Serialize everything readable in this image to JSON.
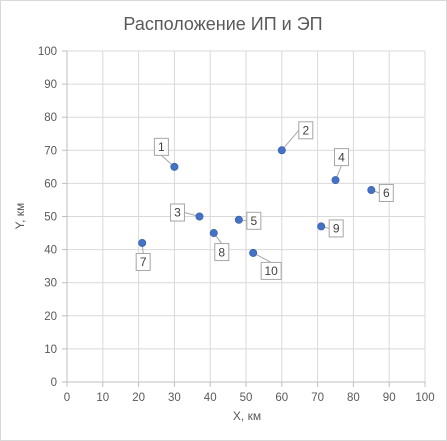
{
  "chart_data": {
    "type": "scatter",
    "title": "Расположение ИП и ЭП",
    "xlabel": "X, км",
    "ylabel": "Y, км",
    "xlim": [
      0,
      100
    ],
    "ylim": [
      0,
      100
    ],
    "xticks": [
      "0",
      "10",
      "20",
      "30",
      "40",
      "50",
      "60",
      "70",
      "80",
      "90",
      "100"
    ],
    "yticks": [
      "0",
      "10",
      "20",
      "30",
      "40",
      "50",
      "60",
      "70",
      "80",
      "90",
      "100"
    ],
    "grid": true,
    "legend": "none",
    "marker_color": "#4472c4",
    "points": [
      {
        "label": "1",
        "x": 30,
        "y": 65
      },
      {
        "label": "2",
        "x": 60,
        "y": 70
      },
      {
        "label": "3",
        "x": 37,
        "y": 50
      },
      {
        "label": "4",
        "x": 75,
        "y": 61
      },
      {
        "label": "5",
        "x": 48,
        "y": 49
      },
      {
        "label": "6",
        "x": 85,
        "y": 58
      },
      {
        "label": "7",
        "x": 21,
        "y": 42
      },
      {
        "label": "8",
        "x": 41,
        "y": 45
      },
      {
        "label": "9",
        "x": 71,
        "y": 47
      },
      {
        "label": "10",
        "x": 52,
        "y": 39
      }
    ]
  }
}
